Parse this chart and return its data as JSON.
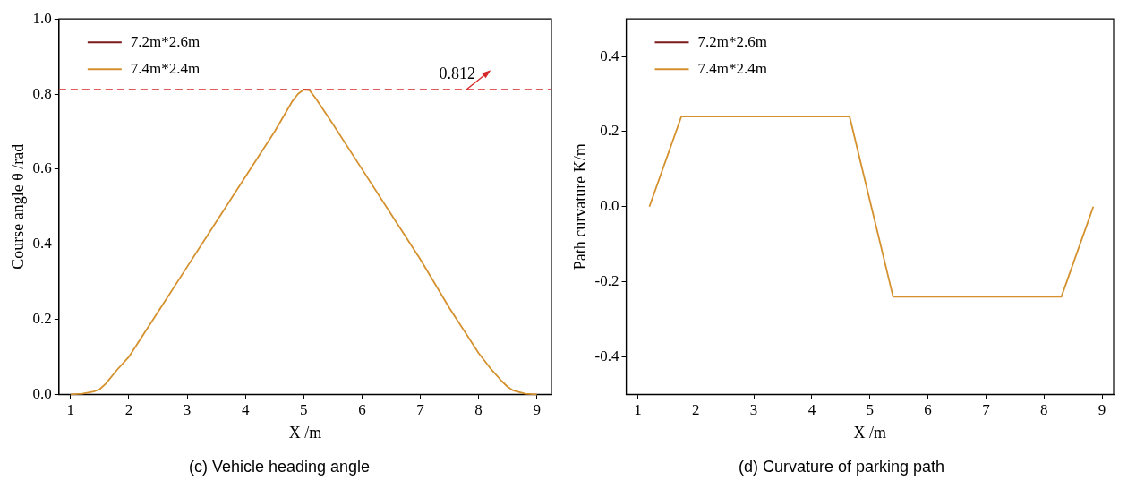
{
  "chart_data": [
    {
      "type": "line",
      "title": "(c) Vehicle heading angle",
      "xlabel": "X /m",
      "ylabel": "Course angle θ /rad",
      "x": [
        1,
        1.2,
        1.4,
        1.5,
        1.6,
        1.8,
        2,
        2.5,
        3,
        3.5,
        4,
        4.5,
        4.8,
        4.9,
        5,
        5.1,
        5.2,
        5.5,
        6,
        6.5,
        7,
        7.5,
        8,
        8.2,
        8.4,
        8.5,
        8.6,
        8.8,
        9
      ],
      "series": [
        {
          "name": "7.2m*2.6m",
          "color": "#7b1a1a",
          "values": [
            null,
            null,
            null,
            null,
            null,
            null,
            null,
            null,
            null,
            null,
            null,
            null,
            null,
            null,
            null,
            null,
            null,
            null,
            null,
            null,
            null,
            null,
            null,
            null,
            null,
            null,
            null,
            null,
            null
          ]
        },
        {
          "name": "7.4m*2.4m",
          "color": "#d4912e",
          "values": [
            0,
            0.002,
            0.008,
            0.014,
            0.028,
            0.066,
            0.1,
            0.22,
            0.34,
            0.46,
            0.58,
            0.7,
            0.78,
            0.8,
            0.812,
            0.81,
            0.79,
            0.72,
            0.6,
            0.48,
            0.36,
            0.23,
            0.11,
            0.07,
            0.035,
            0.02,
            0.01,
            0.002,
            0
          ]
        }
      ],
      "xlim": [
        0.8,
        9.25
      ],
      "xticks": [
        1,
        2,
        3,
        4,
        5,
        6,
        7,
        8,
        9
      ],
      "ylim": [
        0,
        1
      ],
      "yticks": [
        {
          "value": 0,
          "label": "0.0"
        },
        {
          "value": 0.2,
          "label": "0.2"
        },
        {
          "value": 0.4,
          "label": "0.4"
        },
        {
          "value": 0.6,
          "label": "0.6"
        },
        {
          "value": 0.8,
          "label": "0.8"
        },
        {
          "value": 1,
          "label": "1.0"
        }
      ],
      "ref_lines": [
        {
          "axis": "y",
          "value": 0.812,
          "label": "0.812",
          "color": "#d62728",
          "line_style": "dashed"
        }
      ],
      "legend": "top left",
      "grid": false,
      "marker": "none",
      "line_style": "solid"
    },
    {
      "type": "line",
      "title": "(d) Curvature of parking path",
      "xlabel": "X /m",
      "ylabel": "Path curvature K/m",
      "x": [
        1.2,
        1.75,
        4.65,
        5.4,
        8.3,
        8.85
      ],
      "series": [
        {
          "name": "7.2m*2.6m",
          "color": "#7b1a1a",
          "values": [
            null,
            null,
            null,
            null,
            null,
            null
          ]
        },
        {
          "name": "7.4m*2.4m",
          "color": "#d4912e",
          "values": [
            0,
            0.24,
            0.24,
            -0.24,
            -0.24,
            0
          ]
        }
      ],
      "xlim": [
        0.8,
        9.2
      ],
      "xticks": [
        1,
        2,
        3,
        4,
        5,
        6,
        7,
        8,
        9
      ],
      "ylim": [
        -0.5,
        0.5
      ],
      "yticks": [
        {
          "value": -0.4,
          "label": "-0.4"
        },
        {
          "value": -0.2,
          "label": "-0.2"
        },
        {
          "value": 0,
          "label": "0.0"
        },
        {
          "value": 0.2,
          "label": "0.2"
        },
        {
          "value": 0.4,
          "label": "0.4"
        }
      ],
      "legend": "top left",
      "grid": false,
      "marker": "none",
      "line_style": "solid"
    }
  ]
}
